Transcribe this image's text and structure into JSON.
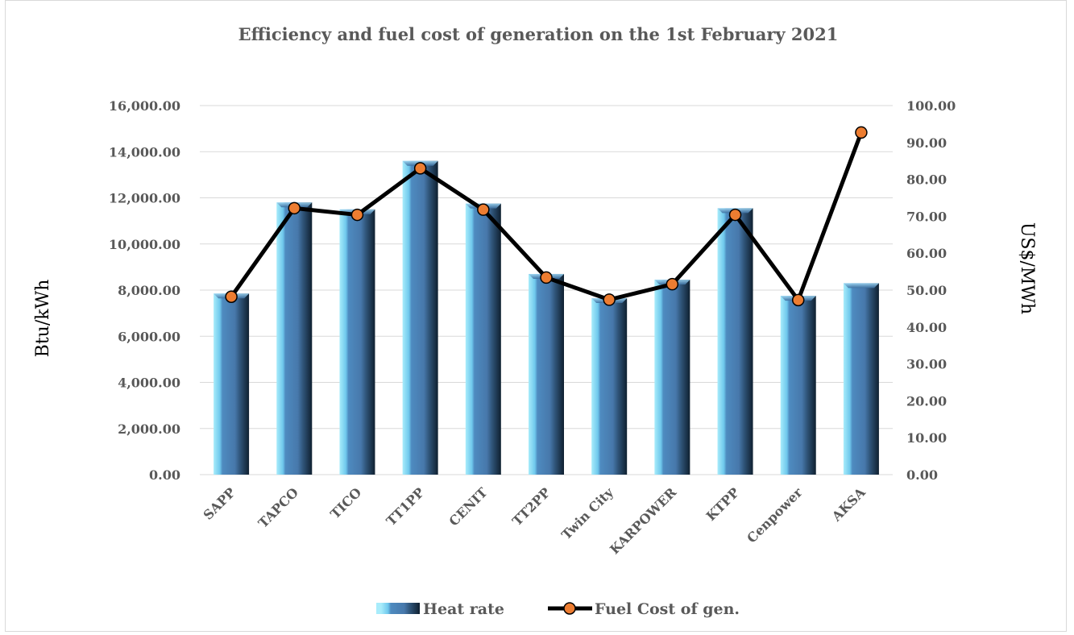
{
  "chart_data": {
    "type": "bar",
    "title": "Efficiency and fuel cost of generation on the 1st February 2021",
    "categories": [
      "SAPP",
      "TAPCO",
      "TICO",
      "TT1PP",
      "CENIT",
      "TT2PP",
      "Twin City",
      "KARPOWER",
      "KTPP",
      "Cenpower",
      "AKSA"
    ],
    "series": [
      {
        "name": "Heat rate",
        "type": "bar",
        "axis": "left",
        "color": "#4a7fb5",
        "values": [
          7850,
          11800,
          11500,
          13600,
          11750,
          8700,
          7650,
          8450,
          11550,
          7750,
          8300
        ]
      },
      {
        "name": "Fuel Cost of gen.",
        "type": "line",
        "axis": "right",
        "color": "#000000",
        "marker_color": "#ed7d31",
        "values": [
          48.2,
          72.2,
          70.4,
          83.0,
          71.8,
          53.4,
          47.4,
          51.6,
          70.4,
          47.3,
          92.7
        ]
      }
    ],
    "ylabel": "Btu/kWh",
    "ylim": [
      0,
      16000
    ],
    "yticks": [
      "0.00",
      "2,000.00",
      "4,000.00",
      "6,000.00",
      "8,000.00",
      "10,000.00",
      "12,000.00",
      "14,000.00",
      "16,000.00"
    ],
    "y2label": "US$/MWh",
    "y2lim": [
      0,
      100
    ],
    "y2ticks": [
      "0.00",
      "10.00",
      "20.00",
      "30.00",
      "40.00",
      "50.00",
      "60.00",
      "70.00",
      "80.00",
      "90.00",
      "100.00"
    ],
    "grid": true,
    "legend_position": "bottom"
  }
}
